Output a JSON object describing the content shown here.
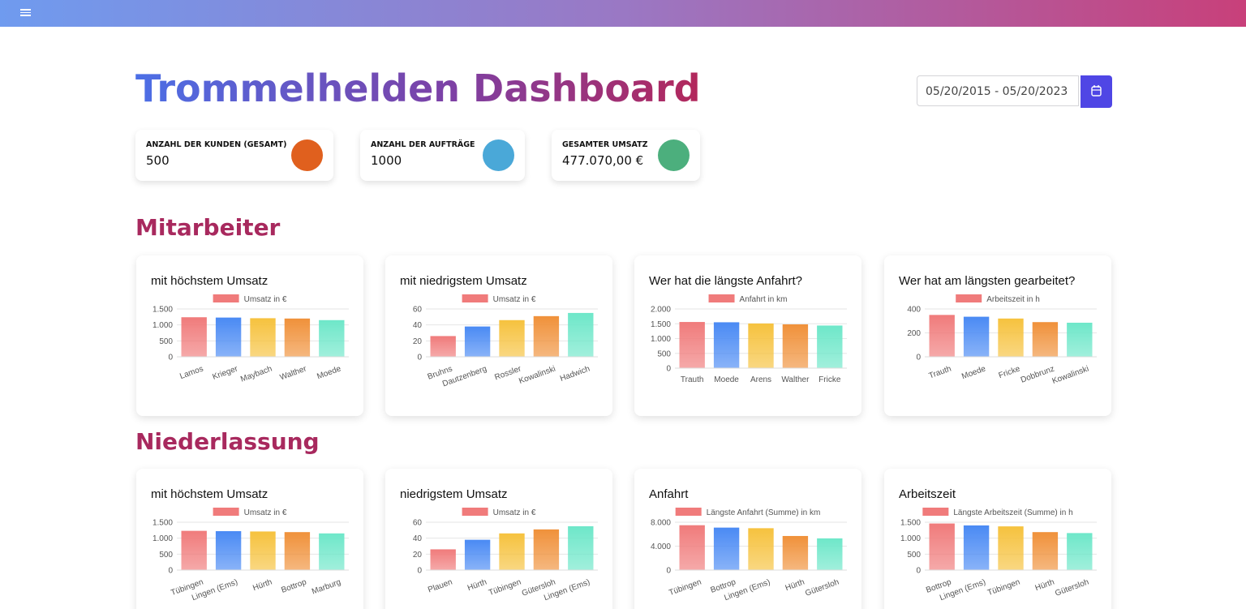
{
  "title": "Trommelhelden Dashboard",
  "date_range": "05/20/2015 - 05/20/2023",
  "kpis": [
    {
      "label": "ANZAHL DER KUNDEN (GESAMT)",
      "value": "500"
    },
    {
      "label": "ANZAHL DER AUFTRÄGE",
      "value": "1000"
    },
    {
      "label": "GESAMTER UMSATZ",
      "value": "477.070,00 €"
    }
  ],
  "sections": [
    "Mitarbeiter",
    "Niederlassung"
  ],
  "chart_data": [
    {
      "type": "bar",
      "title": "mit höchstem Umsatz",
      "categories": [
        "Lamos",
        "Krieger",
        "Maybach",
        "Walther",
        "Moede"
      ],
      "series": [
        {
          "name": "Umsatz in €",
          "colors": [
            "#f07b7b",
            "#4a8af4",
            "#f6c23e",
            "#f0913a",
            "#6ee7c9"
          ],
          "values": [
            1240,
            1230,
            1210,
            1200,
            1150
          ]
        }
      ],
      "ylim": [
        0,
        1500
      ],
      "yticks": [
        0,
        500,
        {
          "value": 1000,
          "label": "1.000"
        },
        {
          "value": 1500,
          "label": "1.500"
        }
      ],
      "grid": true,
      "rotate_labels": true
    },
    {
      "type": "bar",
      "title": "mit niedrigstem Umsatz",
      "categories": [
        "Bruhns",
        "Dautzenberg",
        "Rossler",
        "Kowalinski",
        "Hadwich"
      ],
      "series": [
        {
          "name": "Umsatz in €",
          "colors": [
            "#f07b7b",
            "#4a8af4",
            "#f6c23e",
            "#f0913a",
            "#6ee7c9"
          ],
          "values": [
            26,
            38,
            46,
            51,
            55
          ]
        }
      ],
      "ylim": [
        0,
        60
      ],
      "yticks": [
        0,
        20,
        40,
        60
      ],
      "grid": true,
      "rotate_labels": true
    },
    {
      "type": "bar",
      "title": "Wer hat die längste Anfahrt?",
      "categories": [
        "Trauth",
        "Moede",
        "Arens",
        "Walther",
        "Fricke"
      ],
      "series": [
        {
          "name": "Anfahrt in km",
          "colors": [
            "#f07b7b",
            "#4a8af4",
            "#f6c23e",
            "#f0913a",
            "#6ee7c9"
          ],
          "values": [
            1560,
            1550,
            1510,
            1480,
            1440
          ]
        }
      ],
      "ylim": [
        0,
        2000
      ],
      "yticks": [
        0,
        500,
        {
          "value": 1000,
          "label": "1.000"
        },
        {
          "value": 1500,
          "label": "1.500"
        },
        {
          "value": 2000,
          "label": "2.000"
        }
      ],
      "grid": true,
      "rotate_labels": false
    },
    {
      "type": "bar",
      "title": "Wer hat am längsten gearbeitet?",
      "categories": [
        "Trauth",
        "Moede",
        "Fricke",
        "Dobbrunz",
        "Kowalinski"
      ],
      "series": [
        {
          "name": "Arbeitszeit in h",
          "colors": [
            "#f07b7b",
            "#4a8af4",
            "#f6c23e",
            "#f0913a",
            "#6ee7c9"
          ],
          "values": [
            350,
            335,
            320,
            290,
            285
          ]
        }
      ],
      "ylim": [
        0,
        400
      ],
      "yticks": [
        0,
        200,
        400
      ],
      "grid": true,
      "rotate_labels": true
    },
    {
      "type": "bar",
      "title": "mit höchstem Umsatz",
      "categories": [
        "Tübingen",
        "Lingen (Ems)",
        "Hürth",
        "Bottrop",
        "Marburg"
      ],
      "series": [
        {
          "name": "Umsatz in €",
          "colors": [
            "#f07b7b",
            "#4a8af4",
            "#f6c23e",
            "#f0913a",
            "#6ee7c9"
          ],
          "values": [
            1230,
            1220,
            1210,
            1190,
            1150
          ]
        }
      ],
      "ylim": [
        0,
        1500
      ],
      "yticks": [
        0,
        500,
        {
          "value": 1000,
          "label": "1.000"
        },
        {
          "value": 1500,
          "label": "1.500"
        }
      ],
      "grid": true,
      "rotate_labels": true
    },
    {
      "type": "bar",
      "title": "niedrigstem Umsatz",
      "categories": [
        "Plauen",
        "Hürth",
        "Tübingen",
        "Gütersloh",
        "Lingen (Ems)"
      ],
      "series": [
        {
          "name": "Umsatz in €",
          "colors": [
            "#f07b7b",
            "#4a8af4",
            "#f6c23e",
            "#f0913a",
            "#6ee7c9"
          ],
          "values": [
            26,
            38,
            46,
            51,
            55
          ]
        }
      ],
      "ylim": [
        0,
        60
      ],
      "yticks": [
        0,
        20,
        40,
        60
      ],
      "grid": true,
      "rotate_labels": true
    },
    {
      "type": "bar",
      "title": "Anfahrt",
      "categories": [
        "Tübingen",
        "Bottrop",
        "Lingen (Ems)",
        "Hürth",
        "Gütersloh"
      ],
      "series": [
        {
          "name": "Längste Anfahrt (Summe) in km",
          "colors": [
            "#f07b7b",
            "#4a8af4",
            "#f6c23e",
            "#f0913a",
            "#6ee7c9"
          ],
          "values": [
            7500,
            7100,
            7000,
            5700,
            5300
          ]
        }
      ],
      "ylim": [
        0,
        8000
      ],
      "yticks": [
        0,
        {
          "value": 4000,
          "label": "4.000"
        },
        {
          "value": 8000,
          "label": "8.000"
        }
      ],
      "grid": true,
      "rotate_labels": true
    },
    {
      "type": "bar",
      "title": "Arbeitszeit",
      "categories": [
        "Bottrop",
        "Lingen (Ems)",
        "Tübingen",
        "Hürth",
        "Gütersloh"
      ],
      "series": [
        {
          "name": "Längste Arbeitszeit (Summe) in h",
          "colors": [
            "#f07b7b",
            "#4a8af4",
            "#f6c23e",
            "#f0913a",
            "#6ee7c9"
          ],
          "values": [
            1460,
            1400,
            1370,
            1190,
            1160
          ]
        }
      ],
      "ylim": [
        0,
        1500
      ],
      "yticks": [
        0,
        500,
        {
          "value": 1000,
          "label": "1.000"
        },
        {
          "value": 1500,
          "label": "1.500"
        }
      ],
      "grid": true,
      "rotate_labels": true
    }
  ]
}
